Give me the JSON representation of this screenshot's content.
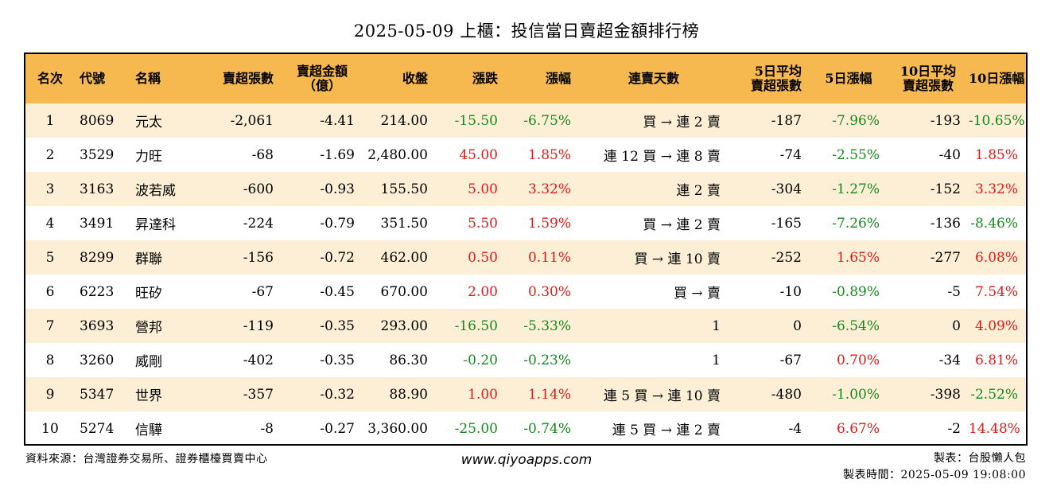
{
  "title": "2025-05-09 上櫃：投信當日賣超金額排行榜",
  "colors": {
    "header_bg": "#f6b94f",
    "stripe_bg": "#fcefd6",
    "up": "#e01a1a",
    "down": "#16891e"
  },
  "headers": {
    "rank": "名次",
    "code": "代號",
    "name": "名稱",
    "sell_volume": "賣超張數",
    "sell_amount_line1": "賣超金額",
    "sell_amount_line2": "（億）",
    "close": "收盤",
    "change": "漲跌",
    "change_pct": "漲幅",
    "streak": "連賣天數",
    "avg5_line1": "5日平均",
    "avg5_line2": "賣超張數",
    "pct5": "5日漲幅",
    "avg10_line1": "10日平均",
    "avg10_line2": "賣超張數",
    "pct10": "10日漲幅"
  },
  "rows": [
    {
      "rank": "1",
      "code": "8069",
      "name": "元太",
      "sell_volume": "-2,061",
      "sell_amount": "-4.41",
      "close": "214.00",
      "change": "-15.50",
      "change_dir": "down",
      "change_pct": "-6.75%",
      "change_pct_dir": "down",
      "streak": "買 → 連 2 賣",
      "avg5": "-187",
      "pct5": "-7.96%",
      "pct5_dir": "down",
      "avg10": "-193",
      "pct10": "-10.65%",
      "pct10_dir": "down"
    },
    {
      "rank": "2",
      "code": "3529",
      "name": "力旺",
      "sell_volume": "-68",
      "sell_amount": "-1.69",
      "close": "2,480.00",
      "change": "45.00",
      "change_dir": "up",
      "change_pct": "1.85%",
      "change_pct_dir": "up",
      "streak": "連 12 買 → 連 8 賣",
      "avg5": "-74",
      "pct5": "-2.55%",
      "pct5_dir": "down",
      "avg10": "-40",
      "pct10": "1.85%",
      "pct10_dir": "up"
    },
    {
      "rank": "3",
      "code": "3163",
      "name": "波若威",
      "sell_volume": "-600",
      "sell_amount": "-0.93",
      "close": "155.50",
      "change": "5.00",
      "change_dir": "up",
      "change_pct": "3.32%",
      "change_pct_dir": "up",
      "streak": "連 2 賣",
      "avg5": "-304",
      "pct5": "-1.27%",
      "pct5_dir": "down",
      "avg10": "-152",
      "pct10": "3.32%",
      "pct10_dir": "up"
    },
    {
      "rank": "4",
      "code": "3491",
      "name": "昇達科",
      "sell_volume": "-224",
      "sell_amount": "-0.79",
      "close": "351.50",
      "change": "5.50",
      "change_dir": "up",
      "change_pct": "1.59%",
      "change_pct_dir": "up",
      "streak": "買 → 連 2 賣",
      "avg5": "-165",
      "pct5": "-7.26%",
      "pct5_dir": "down",
      "avg10": "-136",
      "pct10": "-8.46%",
      "pct10_dir": "down"
    },
    {
      "rank": "5",
      "code": "8299",
      "name": "群聯",
      "sell_volume": "-156",
      "sell_amount": "-0.72",
      "close": "462.00",
      "change": "0.50",
      "change_dir": "up",
      "change_pct": "0.11%",
      "change_pct_dir": "up",
      "streak": "買 → 連 10 賣",
      "avg5": "-252",
      "pct5": "1.65%",
      "pct5_dir": "up",
      "avg10": "-277",
      "pct10": "6.08%",
      "pct10_dir": "up"
    },
    {
      "rank": "6",
      "code": "6223",
      "name": "旺矽",
      "sell_volume": "-67",
      "sell_amount": "-0.45",
      "close": "670.00",
      "change": "2.00",
      "change_dir": "up",
      "change_pct": "0.30%",
      "change_pct_dir": "up",
      "streak": "買 → 賣",
      "avg5": "-10",
      "pct5": "-0.89%",
      "pct5_dir": "down",
      "avg10": "-5",
      "pct10": "7.54%",
      "pct10_dir": "up"
    },
    {
      "rank": "7",
      "code": "3693",
      "name": "營邦",
      "sell_volume": "-119",
      "sell_amount": "-0.35",
      "close": "293.00",
      "change": "-16.50",
      "change_dir": "down",
      "change_pct": "-5.33%",
      "change_pct_dir": "down",
      "streak": "1",
      "avg5": "0",
      "pct5": "-6.54%",
      "pct5_dir": "down",
      "avg10": "0",
      "pct10": "4.09%",
      "pct10_dir": "up"
    },
    {
      "rank": "8",
      "code": "3260",
      "name": "威剛",
      "sell_volume": "-402",
      "sell_amount": "-0.35",
      "close": "86.30",
      "change": "-0.20",
      "change_dir": "down",
      "change_pct": "-0.23%",
      "change_pct_dir": "down",
      "streak": "1",
      "avg5": "-67",
      "pct5": "0.70%",
      "pct5_dir": "up",
      "avg10": "-34",
      "pct10": "6.81%",
      "pct10_dir": "up"
    },
    {
      "rank": "9",
      "code": "5347",
      "name": "世界",
      "sell_volume": "-357",
      "sell_amount": "-0.32",
      "close": "88.90",
      "change": "1.00",
      "change_dir": "up",
      "change_pct": "1.14%",
      "change_pct_dir": "up",
      "streak": "連 5 買 → 連 10 賣",
      "avg5": "-480",
      "pct5": "-1.00%",
      "pct5_dir": "down",
      "avg10": "-398",
      "pct10": "-2.52%",
      "pct10_dir": "down"
    },
    {
      "rank": "10",
      "code": "5274",
      "name": "信驊",
      "sell_volume": "-8",
      "sell_amount": "-0.27",
      "close": "3,360.00",
      "change": "-25.00",
      "change_dir": "down",
      "change_pct": "-0.74%",
      "change_pct_dir": "down",
      "streak": "連 5 買 → 連 2 賣",
      "avg5": "-4",
      "pct5": "6.67%",
      "pct5_dir": "up",
      "avg10": "-2",
      "pct10": "14.48%",
      "pct10_dir": "up"
    }
  ],
  "footer": {
    "source": "資料來源：台灣證券交易所、證券櫃檯買賣中心",
    "website": "www.qiyoapps.com",
    "author": "製表：台股懶人包",
    "made_time": "製表時間：2025-05-09 19:08:00"
  }
}
